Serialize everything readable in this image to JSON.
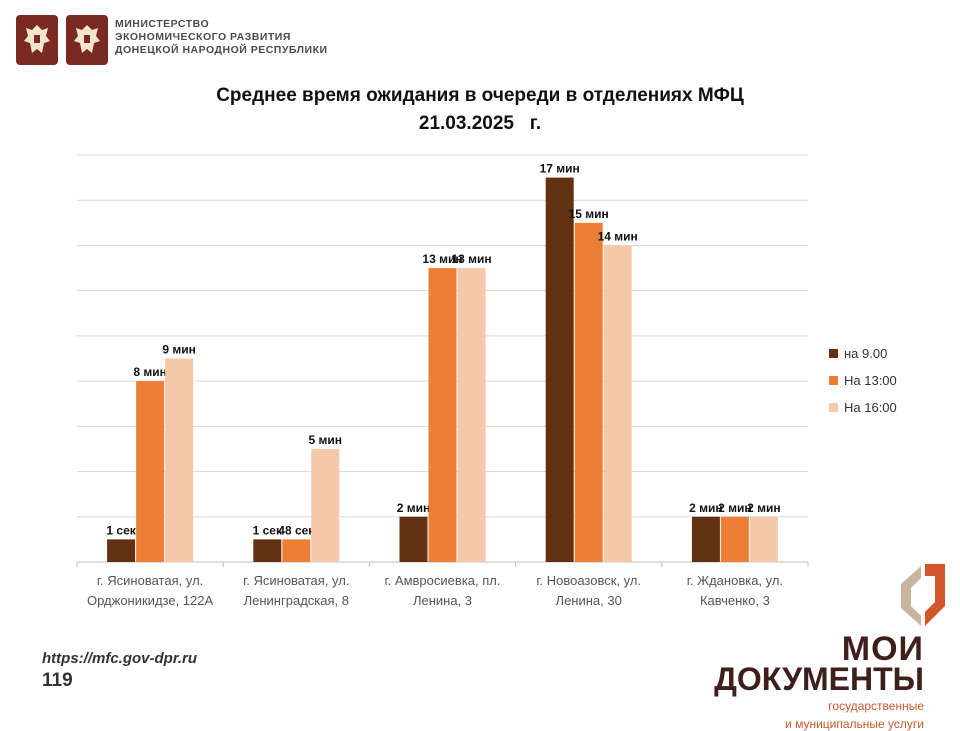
{
  "header": {
    "ministry_lines": [
      "МИНИСТЕРСТВО",
      "ЭКОНОМИЧЕСКОГО РАЗВИТИЯ",
      "ДОНЕЦКОЙ НАРОДНОЙ РЕСПУБЛИКИ"
    ]
  },
  "footer": {
    "url": "https://mfc.gov-dpr.ru",
    "number": "119"
  },
  "brand": {
    "line1": "МОИ",
    "line2": "ДОКУМЕНТЫ",
    "sub1": "государственные",
    "sub2": "и муниципальные услуги"
  },
  "colors": {
    "series_9": "#613111",
    "series_13": "#ec7f35",
    "series_16": "#f5c8aa",
    "emblem_bg": "#7b2a22",
    "brand_dark": "#3e1f1b",
    "brand_accent": "#c45a2a",
    "grid": "#d9d9d9"
  },
  "chart_data": {
    "type": "bar",
    "title": "Среднее время ожидания в очереди в отделениях МФЦ",
    "subtitle": "21.03.2025   г.",
    "categories": [
      [
        "г. Ясиноватая, ул.",
        "Орджоникидзе, 122А"
      ],
      [
        "г. Ясиноватая, ул.",
        "Ленинградская, 8"
      ],
      [
        "г. Амвросиевка, пл.",
        "Ленина, 3"
      ],
      [
        "г. Новоазовск, ул.",
        "Ленина, 30"
      ],
      [
        "г. Ждановка, ул.",
        "Кавченко, 3"
      ]
    ],
    "series": [
      {
        "name": "на 9.00",
        "values": [
          1,
          1,
          2,
          17,
          2
        ],
        "labels": [
          "1 сек",
          "1 сек",
          "2 мин",
          "17 мин",
          "2 мин"
        ]
      },
      {
        "name": "На 13:00",
        "values": [
          8,
          1,
          13,
          15,
          2
        ],
        "labels": [
          "8 мин",
          "48 сек",
          "13 мин",
          "15 мин",
          "2 мин"
        ]
      },
      {
        "name": "На 16:00",
        "values": [
          9,
          5,
          13,
          14,
          2
        ],
        "labels": [
          "9 мин",
          "5 мин",
          "13 мин",
          "14 мин",
          "2 мин"
        ]
      }
    ],
    "ylim": [
      0,
      18
    ],
    "grid": true,
    "legend": "right"
  }
}
